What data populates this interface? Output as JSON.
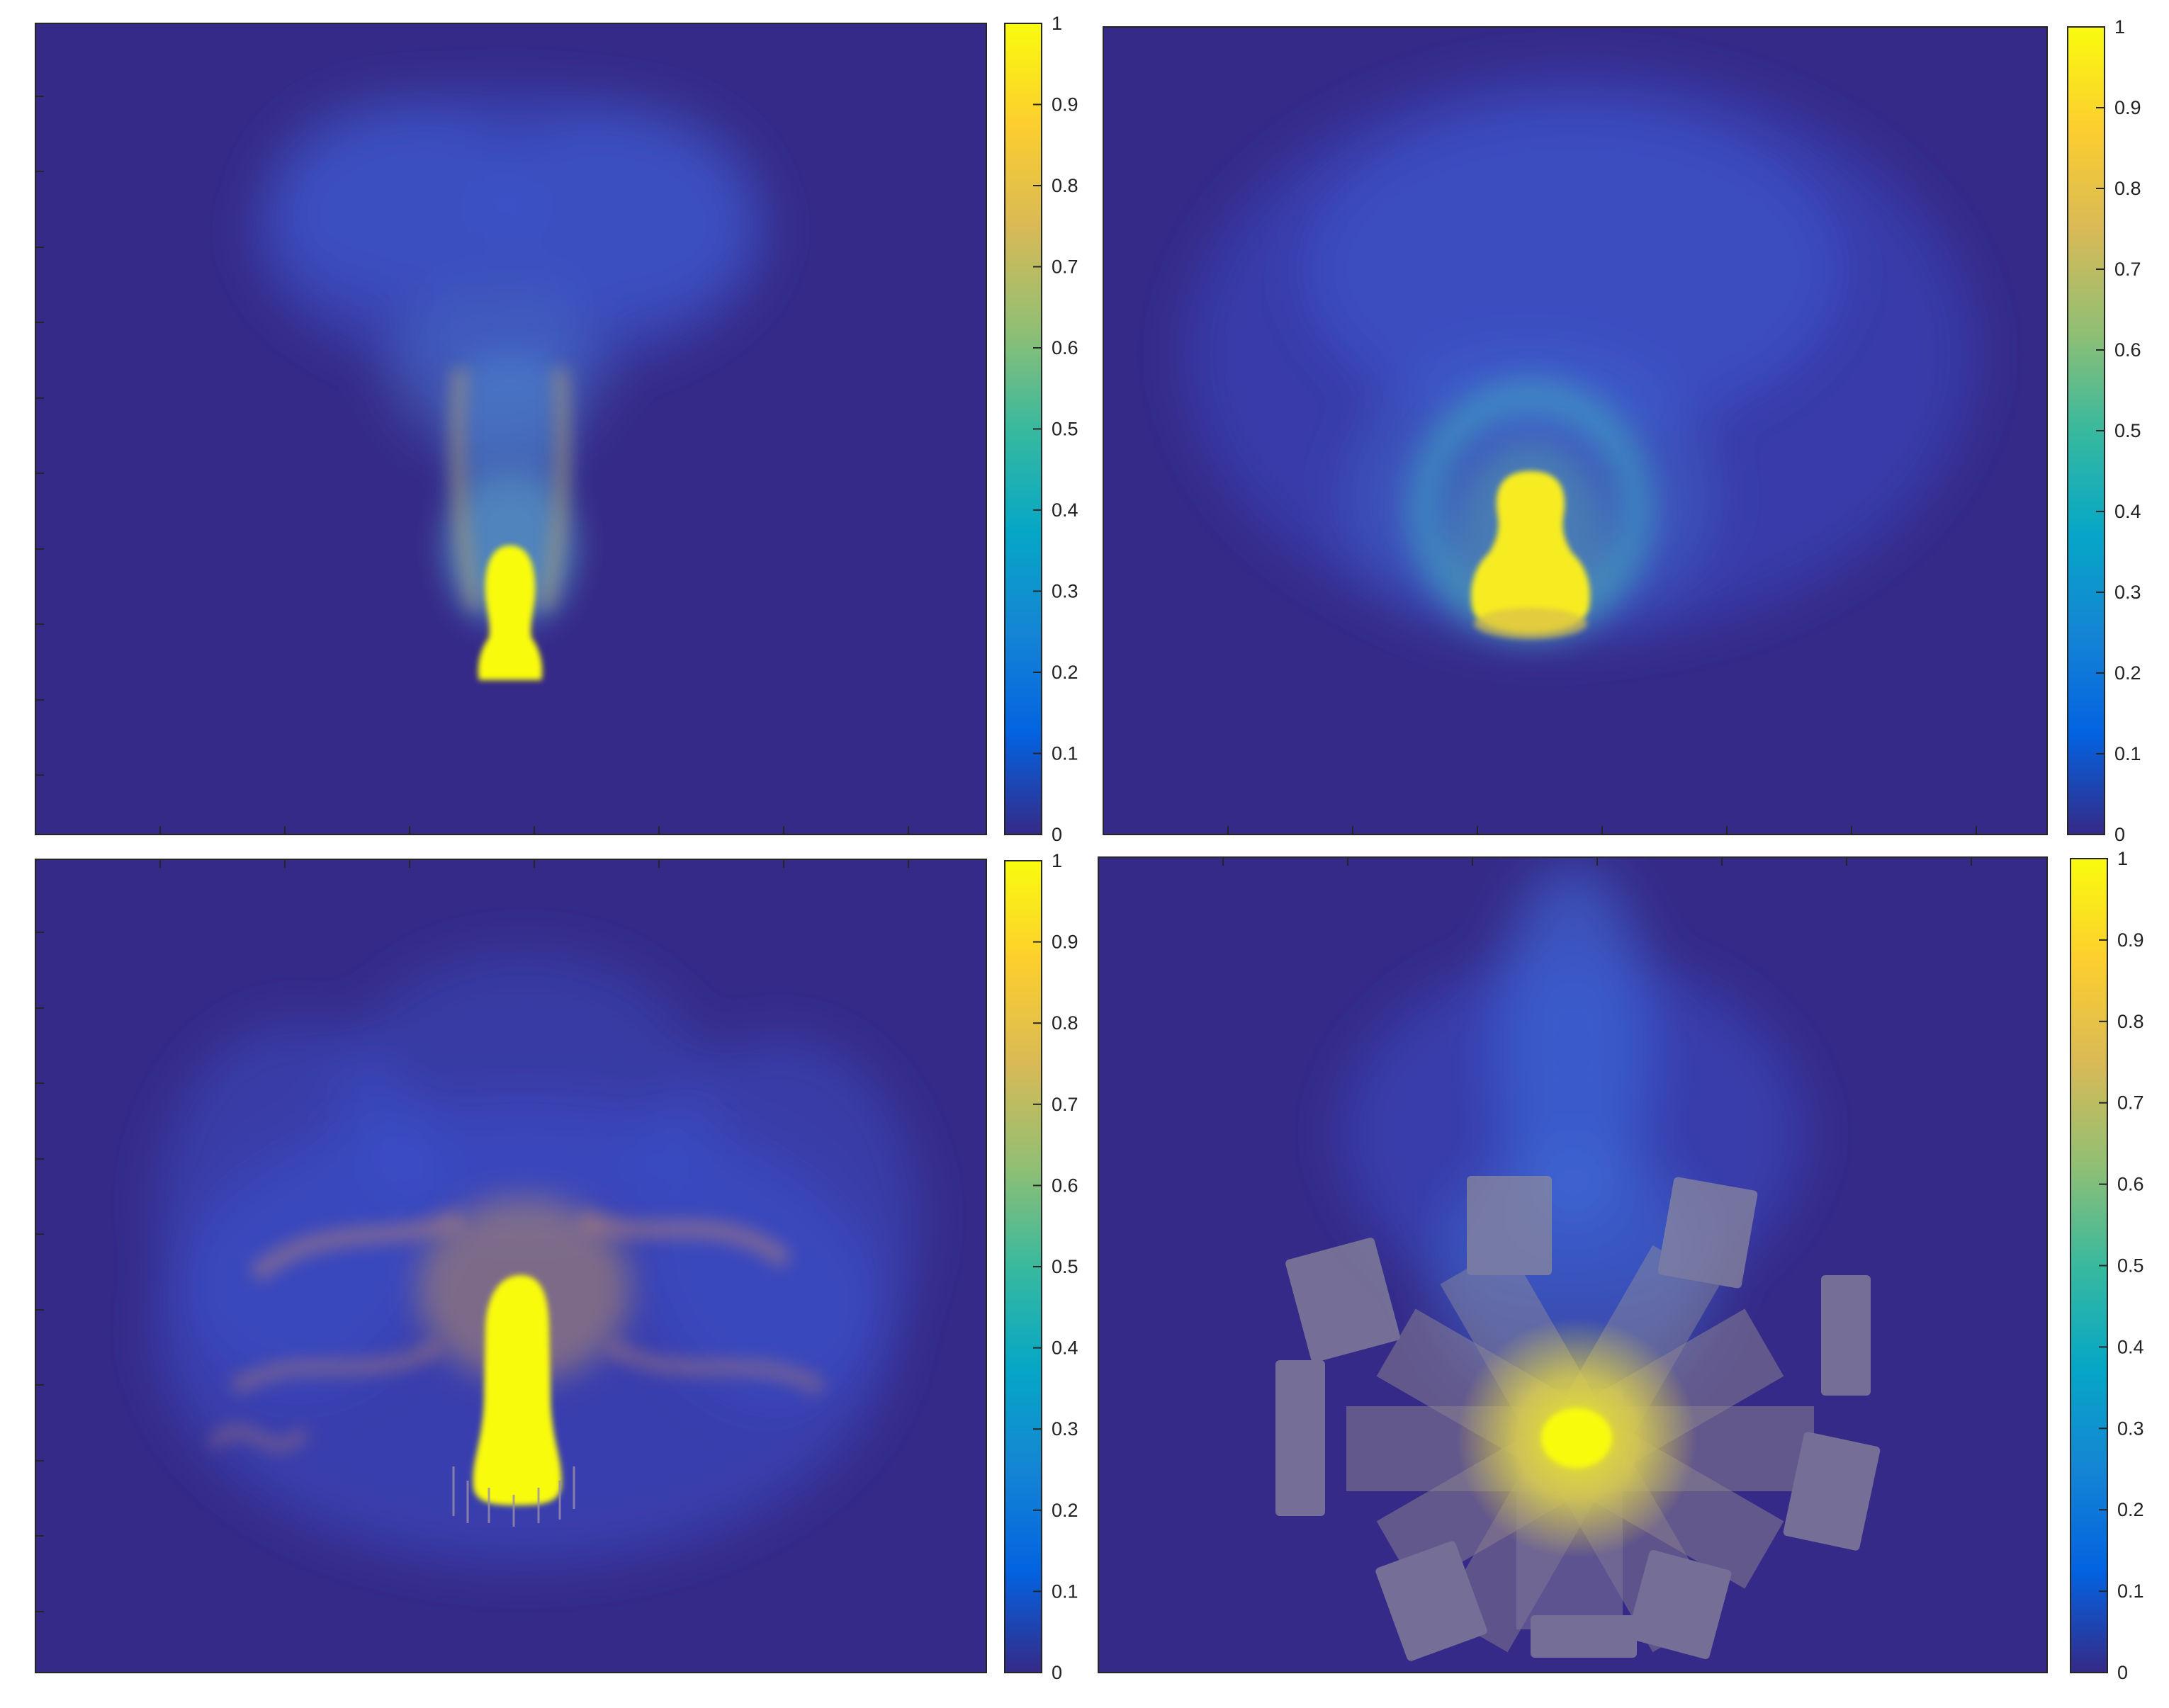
{
  "chart_data": [
    {
      "type": "heatmap",
      "title": "",
      "xlabel": "",
      "ylabel": "",
      "colormap": "parula",
      "clim": [
        0,
        1
      ],
      "colorbar_ticks": [
        "0",
        "0.1",
        "0.2",
        "0.3",
        "0.4",
        "0.5",
        "0.6",
        "0.7",
        "0.8",
        "0.9",
        "1"
      ],
      "peak_value": 1,
      "background_value": 0.05
    },
    {
      "type": "heatmap",
      "title": "",
      "xlabel": "",
      "ylabel": "",
      "colormap": "parula",
      "clim": [
        0,
        1
      ],
      "colorbar_ticks": [
        "0",
        "0.1",
        "0.2",
        "0.3",
        "0.4",
        "0.5",
        "0.6",
        "0.7",
        "0.8",
        "0.9",
        "1"
      ],
      "peak_value": 1,
      "background_value": 0.05
    },
    {
      "type": "heatmap",
      "title": "",
      "xlabel": "",
      "ylabel": "",
      "colormap": "parula",
      "clim": [
        0,
        1
      ],
      "colorbar_ticks": [
        "0",
        "0.1",
        "0.2",
        "0.3",
        "0.4",
        "0.5",
        "0.6",
        "0.7",
        "0.8",
        "0.9",
        "1"
      ],
      "peak_value": 1,
      "background_value": 0.05
    },
    {
      "type": "heatmap",
      "title": "",
      "xlabel": "",
      "ylabel": "",
      "colormap": "parula",
      "clim": [
        0,
        1
      ],
      "colorbar_ticks": [
        "0",
        "0.1",
        "0.2",
        "0.3",
        "0.4",
        "0.5",
        "0.6",
        "0.7",
        "0.8",
        "0.9",
        "1"
      ],
      "peak_value": 1,
      "background_value": 0.05
    }
  ],
  "colors": {
    "background": "#352a87",
    "peak": "#f9fb0e",
    "colormap_stops": [
      "#352a87",
      "#0363e1",
      "#1485d4",
      "#06a7c6",
      "#38b99e",
      "#92bf73",
      "#d9ba56",
      "#fcce2e",
      "#f9fb0e"
    ],
    "hardware_overlay": "#8f8a9c"
  }
}
